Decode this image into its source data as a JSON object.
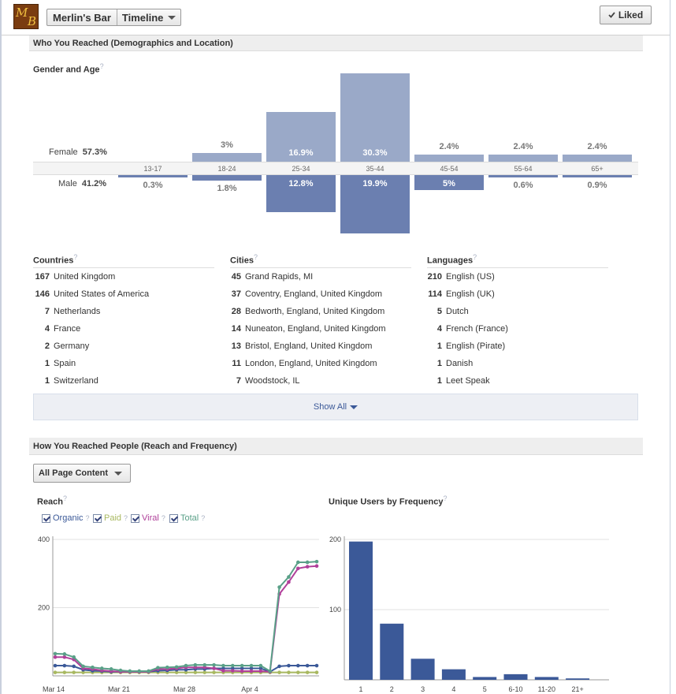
{
  "header": {
    "logo_letters": [
      "M",
      "B"
    ],
    "page_name": "Merlin's Bar",
    "timeline_label": "Timeline",
    "liked_label": "Liked",
    "liked_icon": "checkmark-icon"
  },
  "sections": {
    "who_reached": "Who You Reached (Demographics and Location)",
    "how_reached": "How You Reached People (Reach and Frequency)"
  },
  "demographics": {
    "title": "Gender and Age",
    "help": "?",
    "female_label": "Female",
    "female_total": "57.3%",
    "male_label": "Male",
    "male_total": "41.2%",
    "groups": [
      {
        "age": "13-17",
        "female_pct": "",
        "male_pct": "0.3%",
        "female_value": 0.0,
        "male_value": 0.3
      },
      {
        "age": "18-24",
        "female_pct": "3%",
        "male_pct": "1.8%",
        "female_value": 3.0,
        "male_value": 1.8
      },
      {
        "age": "25-34",
        "female_pct": "16.9%",
        "male_pct": "12.8%",
        "female_value": 16.9,
        "male_value": 12.8
      },
      {
        "age": "35-44",
        "female_pct": "30.3%",
        "male_pct": "19.9%",
        "female_value": 30.3,
        "male_value": 19.9
      },
      {
        "age": "45-54",
        "female_pct": "2.4%",
        "male_pct": "5%",
        "female_value": 2.4,
        "male_value": 5.0
      },
      {
        "age": "55-64",
        "female_pct": "2.4%",
        "male_pct": "0.6%",
        "female_value": 2.4,
        "male_value": 0.6
      },
      {
        "age": "65+",
        "female_pct": "2.4%",
        "male_pct": "0.9%",
        "female_value": 2.4,
        "male_value": 0.9
      }
    ]
  },
  "countries": {
    "title": "Countries",
    "help": "?",
    "items": [
      {
        "count": "167",
        "name": "United Kingdom"
      },
      {
        "count": "146",
        "name": "United States of America"
      },
      {
        "count": "7",
        "name": "Netherlands"
      },
      {
        "count": "4",
        "name": "France"
      },
      {
        "count": "2",
        "name": "Germany"
      },
      {
        "count": "1",
        "name": "Spain"
      },
      {
        "count": "1",
        "name": "Switzerland"
      }
    ]
  },
  "cities": {
    "title": "Cities",
    "help": "?",
    "items": [
      {
        "count": "45",
        "name": "Grand Rapids, MI"
      },
      {
        "count": "37",
        "name": "Coventry, England, United Kingdom"
      },
      {
        "count": "28",
        "name": "Bedworth, England, United Kingdom"
      },
      {
        "count": "14",
        "name": "Nuneaton, England, United Kingdom"
      },
      {
        "count": "13",
        "name": "Bristol, England, United Kingdom"
      },
      {
        "count": "11",
        "name": "London, England, United Kingdom"
      },
      {
        "count": "7",
        "name": "Woodstock, IL"
      }
    ]
  },
  "languages": {
    "title": "Languages",
    "help": "?",
    "items": [
      {
        "count": "210",
        "name": "English (US)"
      },
      {
        "count": "114",
        "name": "English (UK)"
      },
      {
        "count": "5",
        "name": "Dutch"
      },
      {
        "count": "4",
        "name": "French (France)"
      },
      {
        "count": "1",
        "name": "English (Pirate)"
      },
      {
        "count": "1",
        "name": "Danish"
      },
      {
        "count": "1",
        "name": "Leet Speak"
      }
    ]
  },
  "show_all_label": "Show All",
  "content_filter": {
    "selected": "All Page Content"
  },
  "reach": {
    "title": "Reach",
    "help": "?",
    "legend": [
      {
        "label": "Organic",
        "color": "#3b5998",
        "checked": true
      },
      {
        "label": "Paid",
        "color": "#a8b860",
        "checked": true
      },
      {
        "label": "Viral",
        "color": "#b0409a",
        "checked": true
      },
      {
        "label": "Total",
        "color": "#5aa088",
        "checked": true
      }
    ]
  },
  "frequency": {
    "title": "Unique Users by Frequency",
    "help": "?"
  },
  "chart_data": [
    {
      "type": "line",
      "title": "Reach",
      "ylim": [
        0,
        400
      ],
      "y_ticks": [
        "200",
        "400"
      ],
      "x_ticks": [
        "Mar 14",
        "Mar 21",
        "Mar 28",
        "Apr 4"
      ],
      "x_days": 28,
      "grid": true,
      "series": [
        {
          "name": "Organic",
          "color": "#3b5998",
          "values": [
            30,
            30,
            28,
            18,
            15,
            14,
            12,
            12,
            12,
            12,
            12,
            15,
            16,
            18,
            18,
            20,
            20,
            22,
            22,
            22,
            22,
            22,
            22,
            12,
            28,
            30,
            30,
            30,
            30
          ]
        },
        {
          "name": "Paid",
          "color": "#a8b860",
          "values": [
            10,
            10,
            10,
            10,
            10,
            10,
            10,
            10,
            10,
            10,
            10,
            10,
            10,
            10,
            10,
            10,
            10,
            10,
            10,
            10,
            10,
            10,
            10,
            10,
            10,
            10,
            10,
            10,
            10
          ]
        },
        {
          "name": "Viral",
          "color": "#b0409a",
          "values": [
            55,
            55,
            48,
            22,
            20,
            16,
            14,
            12,
            12,
            12,
            12,
            20,
            20,
            22,
            25,
            25,
            25,
            22,
            15,
            15,
            14,
            14,
            14,
            12,
            240,
            275,
            315,
            320,
            322
          ]
        },
        {
          "name": "Total",
          "color": "#5aa088",
          "values": [
            65,
            64,
            55,
            28,
            25,
            22,
            20,
            16,
            14,
            14,
            14,
            24,
            25,
            26,
            30,
            32,
            32,
            32,
            30,
            30,
            30,
            30,
            30,
            14,
            260,
            290,
            333,
            333,
            335
          ]
        }
      ]
    },
    {
      "type": "bar",
      "title": "Unique Users by Frequency",
      "categories": [
        "1",
        "2",
        "3",
        "4",
        "5",
        "6-10",
        "11-20",
        "21+"
      ],
      "values": [
        197,
        80,
        30,
        15,
        4,
        8,
        4,
        2
      ],
      "ylim": [
        0,
        200
      ],
      "y_ticks": [
        "100",
        "200"
      ],
      "color": "#3b5998",
      "grid": true
    }
  ]
}
